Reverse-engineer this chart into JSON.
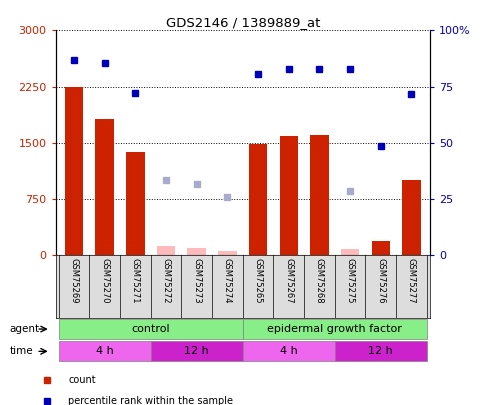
{
  "title": "GDS2146 / 1389889_at",
  "samples": [
    "GSM75269",
    "GSM75270",
    "GSM75271",
    "GSM75272",
    "GSM75273",
    "GSM75274",
    "GSM75265",
    "GSM75267",
    "GSM75268",
    "GSM75275",
    "GSM75276",
    "GSM75277"
  ],
  "red_bars": [
    2240,
    1820,
    1380,
    null,
    null,
    null,
    1490,
    1590,
    1600,
    null,
    190,
    1000
  ],
  "pink_bars": [
    null,
    null,
    null,
    120,
    100,
    60,
    null,
    null,
    null,
    80,
    null,
    null
  ],
  "blue_dots_left": [
    2600,
    2560,
    2170,
    null,
    null,
    null,
    2420,
    2480,
    2490,
    2490,
    1460,
    2150
  ],
  "lavender_dots_left": [
    null,
    null,
    null,
    1000,
    950,
    770,
    null,
    null,
    null,
    850,
    null,
    null
  ],
  "left_ylim": [
    0,
    3000
  ],
  "left_yticks": [
    0,
    750,
    1500,
    2250,
    3000
  ],
  "right_ylim": [
    0,
    100
  ],
  "right_yticks": [
    0,
    25,
    50,
    75,
    100
  ],
  "right_yticklabels": [
    "0",
    "25",
    "50",
    "75",
    "100%"
  ],
  "bar_color_red": "#cc2200",
  "bar_color_pink": "#ffbbbb",
  "dot_color_blue": "#0000bb",
  "dot_color_lavender": "#aaaacc",
  "grid_color": "#000000",
  "agent_color": "#88ee88",
  "time_color_light": "#ee66ee",
  "time_color_dark": "#cc22cc",
  "tick_color_left": "#cc2200",
  "tick_color_right": "#0000bb"
}
